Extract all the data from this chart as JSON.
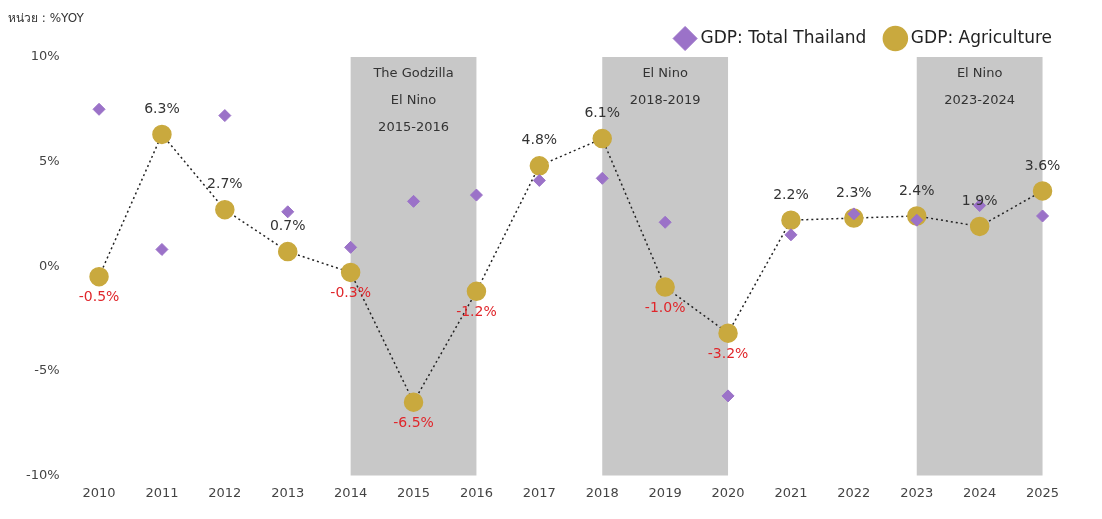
{
  "chart_data": {
    "type": "line",
    "ylabel": "หน่วย : %YOY",
    "categories": [
      "2010",
      "2011",
      "2012",
      "2013",
      "2014",
      "2015",
      "2016",
      "2017",
      "2018",
      "2019",
      "2020",
      "2021",
      "2022",
      "2023",
      "2024",
      "2025"
    ],
    "series": [
      {
        "name": "GDP: Total Thailand",
        "type": "scatter",
        "marker": "diamond",
        "color": "#9b72c8",
        "values": [
          7.5,
          0.8,
          7.2,
          2.6,
          0.9,
          3.1,
          3.4,
          4.1,
          4.2,
          2.1,
          -6.2,
          1.5,
          2.5,
          2.2,
          2.9,
          2.4
        ]
      },
      {
        "name": "GDP: Agriculture",
        "type": "line",
        "marker": "circle",
        "line_style": "dotted",
        "color": "#c9a93e",
        "values": [
          -0.5,
          6.3,
          2.7,
          0.7,
          -0.3,
          -6.5,
          -1.2,
          4.8,
          6.1,
          -1.0,
          -3.2,
          2.2,
          2.3,
          2.4,
          1.9,
          3.6
        ],
        "value_labels": [
          "-0.5%",
          "6.3%",
          "2.7%",
          "0.7%",
          "-0.3%",
          "-6.5%",
          "-1.2%",
          "4.8%",
          "6.1%",
          "-1.0%",
          "-3.2%",
          "2.2%",
          "2.3%",
          "2.4%",
          "1.9%",
          "3.6%"
        ]
      }
    ],
    "ylim": [
      -10,
      10
    ],
    "yticks": [
      {
        "value": -10,
        "label": "-10%"
      },
      {
        "value": -5,
        "label": "-5%"
      },
      {
        "value": 0,
        "label": "0%"
      },
      {
        "value": 5,
        "label": "5%"
      },
      {
        "value": 10,
        "label": "10%"
      }
    ],
    "bands": [
      {
        "axis": "x",
        "from": "2014",
        "to": "2016",
        "label": "The Godzilla\nEl Nino\n2015-2016",
        "color": "#c8c8c8"
      },
      {
        "axis": "x",
        "from": "2018",
        "to": "2020",
        "label": "El Nino\n2018-2019",
        "color": "#c8c8c8"
      },
      {
        "axis": "x",
        "from": "2023",
        "to": "2025",
        "label": "El Nino\n2023-2024",
        "color": "#c8c8c8"
      }
    ],
    "grid": false,
    "legend": "top right"
  }
}
